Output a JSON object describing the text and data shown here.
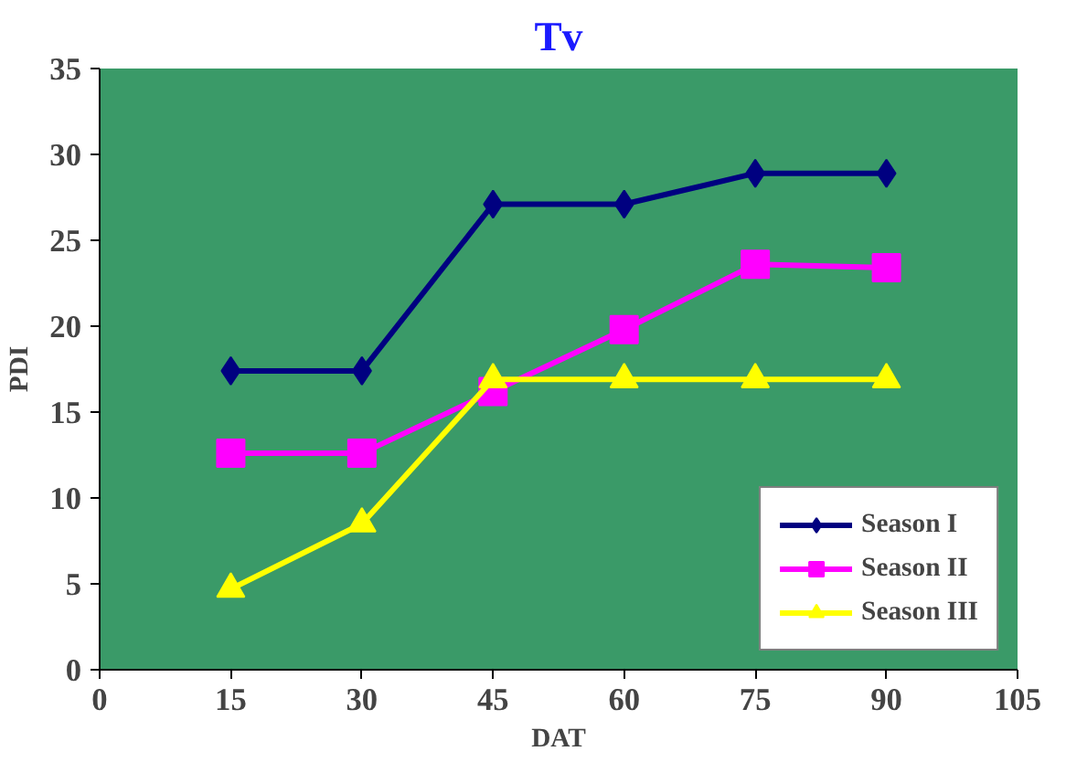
{
  "chart_data": {
    "type": "line",
    "title": "Tv",
    "xlabel": "DAT",
    "ylabel": "PDI",
    "x": [
      15,
      30,
      45,
      60,
      75,
      90
    ],
    "series": [
      {
        "name": "Season I",
        "color": "#000080",
        "marker": "diamond",
        "values": [
          17.4,
          17.4,
          27.1,
          27.1,
          28.9,
          28.9
        ]
      },
      {
        "name": "Season II",
        "color": "#ff00ff",
        "marker": "square",
        "values": [
          12.6,
          12.6,
          16.2,
          19.8,
          23.6,
          23.4
        ]
      },
      {
        "name": "Season III",
        "color": "#ffff00",
        "marker": "triangle",
        "values": [
          4.7,
          8.5,
          16.9,
          16.9,
          16.9,
          16.9
        ]
      }
    ],
    "xlim": [
      0,
      105
    ],
    "xticks": [
      0,
      15,
      30,
      45,
      60,
      75,
      90,
      105
    ],
    "ylim": [
      0,
      35
    ],
    "yticks": [
      0,
      5,
      10,
      15,
      20,
      25,
      30,
      35
    ],
    "grid": false,
    "legend": "bottom right",
    "line_style": "solid"
  }
}
